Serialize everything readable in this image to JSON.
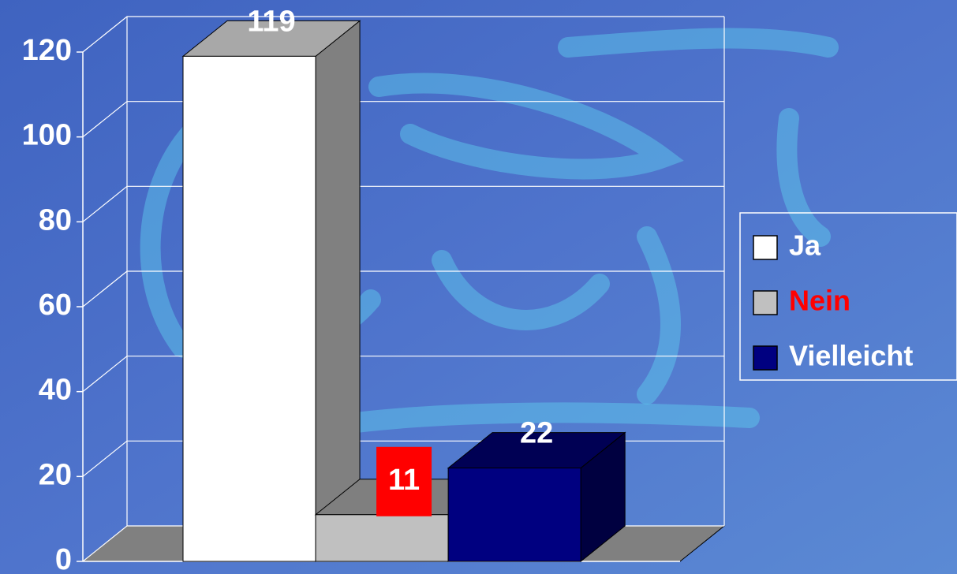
{
  "chart_data": {
    "type": "bar3d",
    "categories": [
      null
    ],
    "series": [
      {
        "name": "Ja",
        "color": "#ffffff",
        "legend_text_color": "#ffffff",
        "values": [
          119
        ]
      },
      {
        "name": "Nein",
        "color": "#c0c0c0",
        "legend_text_color": "#ff0000",
        "label_box": "#ff0000",
        "values": [
          11
        ]
      },
      {
        "name": "Vielleicht",
        "color": "#000080",
        "legend_text_color": "#ffffff",
        "values": [
          22
        ]
      }
    ],
    "ylim": [
      0,
      120
    ],
    "yticks": [
      0,
      20,
      40,
      60,
      80,
      100,
      120
    ],
    "grid": true,
    "legend": "right"
  }
}
